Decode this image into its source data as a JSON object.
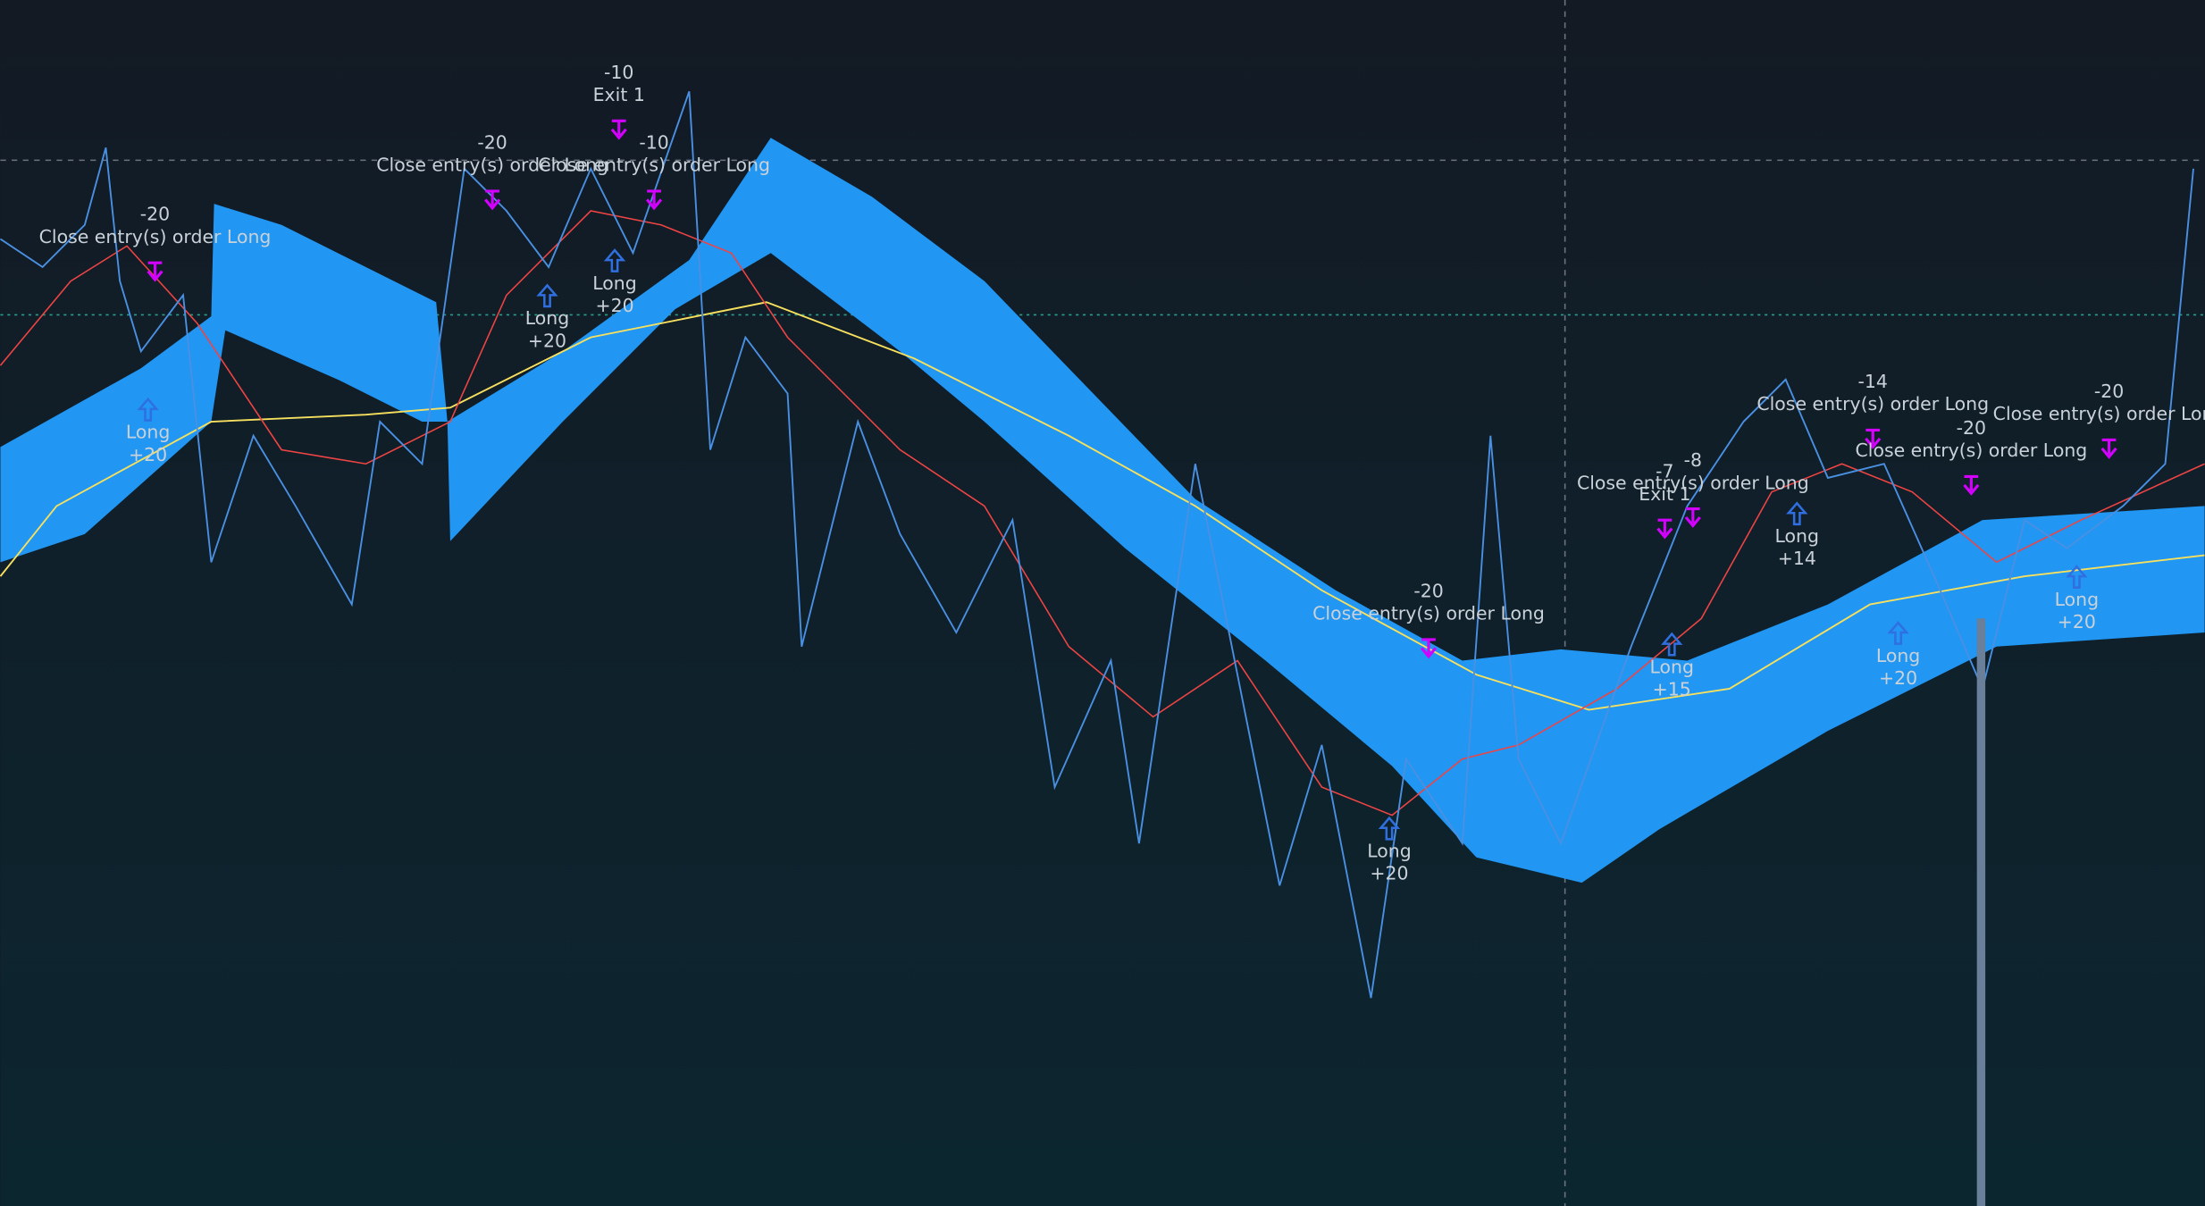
{
  "signals": [
    {
      "lines": [
        "-20",
        "Close entry(s) order Long"
      ]
    },
    {
      "lines": [
        "Long",
        "+20"
      ]
    },
    {
      "lines": [
        "-20",
        "Close entry(s) order Long"
      ]
    },
    {
      "lines": [
        "-10",
        "Exit 1"
      ]
    },
    {
      "lines": [
        "-10",
        "Close entry(s) order Long"
      ]
    },
    {
      "lines": [
        "Long",
        "+20"
      ]
    },
    {
      "lines": [
        "Long",
        "+20"
      ]
    },
    {
      "lines": [
        "-20",
        "Close entry(s) order Long"
      ]
    },
    {
      "lines": [
        "Long",
        "+20"
      ]
    },
    {
      "lines": [
        "-7",
        "Exit 1"
      ]
    },
    {
      "lines": [
        "-8",
        "Close entry(s) order Long"
      ]
    },
    {
      "lines": [
        "Long",
        "+15"
      ]
    },
    {
      "lines": [
        "Long",
        "+14"
      ]
    },
    {
      "lines": [
        "-14",
        "Close entry(s) order Long"
      ]
    },
    {
      "lines": [
        "-20",
        "Close entry(s) order Long"
      ]
    },
    {
      "lines": [
        "Long",
        "+20"
      ]
    },
    {
      "lines": [
        "-20",
        "Close entry(s) order Long"
      ]
    },
    {
      "lines": [
        "Long",
        "+20"
      ]
    }
  ]
}
